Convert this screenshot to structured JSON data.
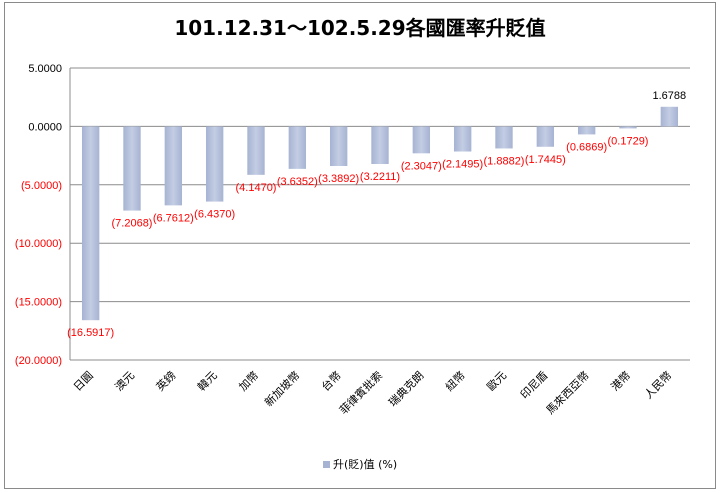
{
  "chart_data": {
    "type": "bar",
    "title": "101.12.31～102.5.29各國匯率升貶值",
    "categories": [
      "日圓",
      "澳元",
      "英鎊",
      "韓元",
      "加幣",
      "新加坡幣",
      "台幣",
      "菲律賓批索",
      "瑞典克朗",
      "紐幣",
      "歐元",
      "印尼盾",
      "馬來西亞幣",
      "港幣",
      "人民幣"
    ],
    "series": [
      {
        "name": "升(貶)值 (%)",
        "values": [
          -16.5917,
          -7.2068,
          -6.7612,
          -6.437,
          -4.147,
          -3.6352,
          -3.3892,
          -3.2211,
          -2.3047,
          -2.1495,
          -1.8882,
          -1.7445,
          -0.6869,
          -0.1729,
          1.6788
        ]
      }
    ],
    "data_labels": [
      "(16.5917)",
      "(7.2068)",
      "(6.7612)",
      "(6.4370)",
      "(4.1470)",
      "(3.6352)",
      "(3.3892)",
      "(3.2211)",
      "(2.3047)",
      "(2.1495)",
      "(1.8882)",
      "(1.7445)",
      "(0.6869)",
      "(0.1729)",
      "1.6788"
    ],
    "y_ticks": [
      "5.0000",
      "0.0000",
      "(5.0000)",
      "(10.0000)",
      "(15.0000)",
      "(20.0000)"
    ],
    "ylim": [
      -20,
      5
    ],
    "xlabel": "",
    "ylabel": "",
    "grid": true,
    "legend": {
      "position": "bottom",
      "label": "升(貶)值 (%)"
    },
    "colors": {
      "bar": "#a6b3d2",
      "bar_top": "#c3cde3",
      "gridline": "#8c8c8c",
      "negative_label": "#ff0000",
      "positive_label": "#000000"
    }
  }
}
